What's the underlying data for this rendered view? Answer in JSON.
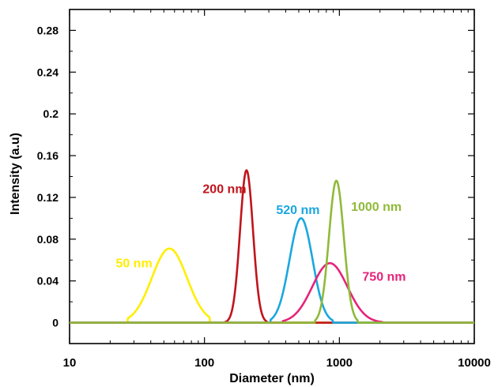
{
  "chart_data": {
    "type": "line",
    "title": "",
    "xlabel": "Diameter (nm)",
    "ylabel": "Intensity (a.u)",
    "x_scale": "log",
    "xlim": [
      10,
      10000
    ],
    "ylim": [
      -0.02,
      0.3
    ],
    "x_ticks": [
      10,
      100,
      1000,
      10000
    ],
    "x_tick_labels": [
      "10",
      "100",
      "1000",
      "10000"
    ],
    "y_ticks": [
      0,
      0.04,
      0.08,
      0.12,
      0.16,
      0.2,
      0.24,
      0.28
    ],
    "y_tick_labels": [
      "0",
      "0.04",
      "0.08",
      "0.12",
      "0.16",
      "0.2",
      "0.24",
      "0.28"
    ],
    "grid": false,
    "series": [
      {
        "name": "50 nm",
        "color": "#ffee00",
        "peak_x": 55,
        "peak_y": 0.071,
        "log_sigma": 0.13,
        "range": [
          27,
          110
        ]
      },
      {
        "name": "200 nm",
        "color": "#c0141b",
        "peak_x": 205,
        "peak_y": 0.146,
        "log_sigma": 0.048,
        "range": [
          140,
          290
        ]
      },
      {
        "name": "520 nm",
        "color": "#1aa7e0",
        "peak_x": 520,
        "peak_y": 0.1,
        "log_sigma": 0.085,
        "range": [
          310,
          900
        ]
      },
      {
        "name": "750 nm",
        "color": "#e5247a",
        "peak_x": 850,
        "peak_y": 0.057,
        "log_sigma": 0.13,
        "range": [
          380,
          2100
        ]
      },
      {
        "name": "1000 nm",
        "color": "#8fba3a",
        "peak_x": 950,
        "peak_y": 0.136,
        "log_sigma": 0.055,
        "range": [
          660,
          1370
        ]
      }
    ],
    "annotations": [
      {
        "text": "50 nm",
        "x": 22,
        "y": 0.053,
        "color": "#ffee00"
      },
      {
        "text": "200 nm",
        "x": 97,
        "y": 0.124,
        "color": "#c0141b"
      },
      {
        "text": "520 nm",
        "x": 340,
        "y": 0.104,
        "color": "#1aa7e0"
      },
      {
        "text": "1000 nm",
        "x": 1220,
        "y": 0.107,
        "color": "#8fba3a"
      },
      {
        "text": "750 nm",
        "x": 1480,
        "y": 0.04,
        "color": "#e5247a"
      }
    ]
  }
}
